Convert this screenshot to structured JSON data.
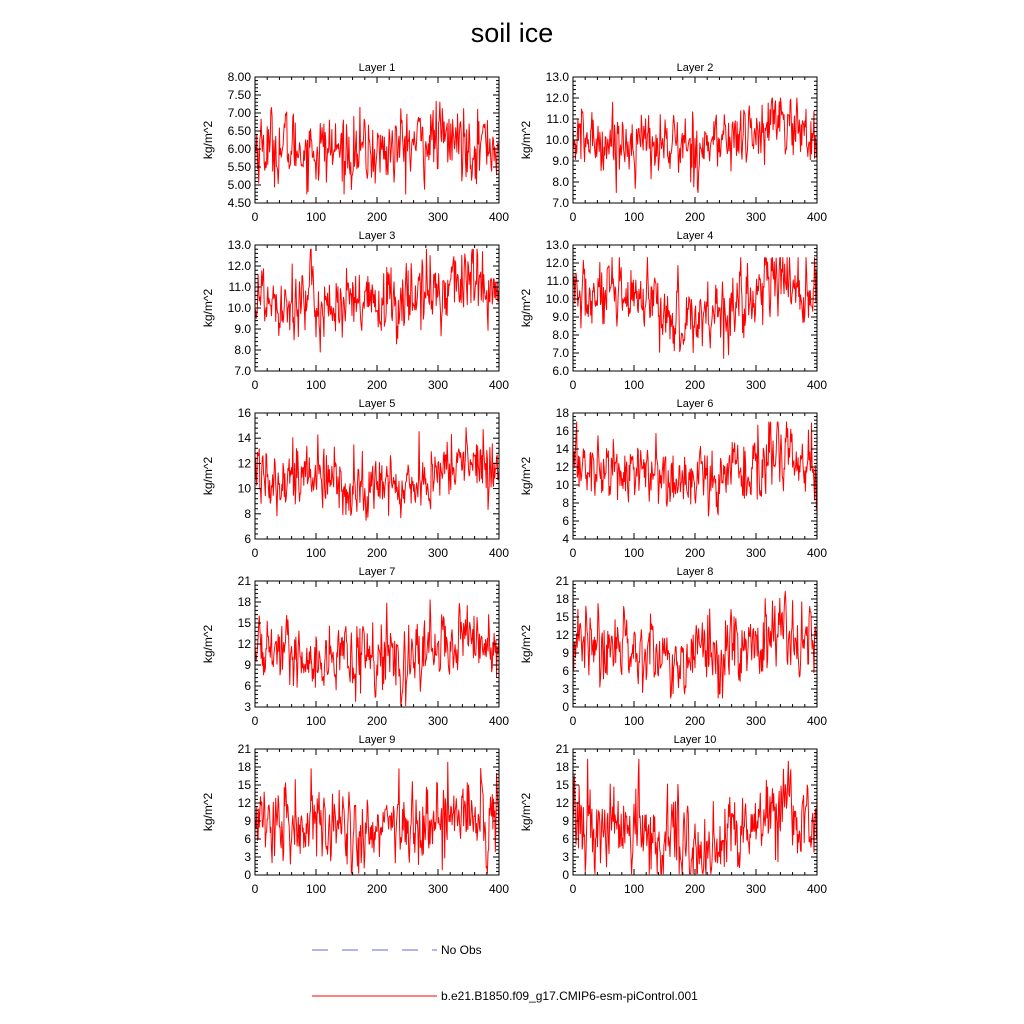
{
  "figure": {
    "title": "soil ice"
  },
  "legend": {
    "entries": [
      {
        "label": "No Obs",
        "color": "#6a6ad8",
        "style": "dashed"
      },
      {
        "label": "b.e21.B1850.f09_g17.CMIP6-esm-piControl.001",
        "color": "#ff0000",
        "style": "solid"
      }
    ]
  },
  "chart_data": [
    {
      "type": "line",
      "title": "Layer 1",
      "xlabel": "",
      "ylabel": "kg/m^2",
      "xlim": [
        0,
        400
      ],
      "ylim": [
        4.5,
        8.0
      ],
      "xticks": [
        0,
        100,
        200,
        300,
        400
      ],
      "yticks": [
        4.5,
        5.0,
        5.5,
        6.0,
        6.5,
        7.0,
        7.5,
        8.0
      ],
      "ytick_labels": [
        "4.50",
        "5.00",
        "5.50",
        "6.00",
        "6.50",
        "7.00",
        "7.50",
        "8.00"
      ],
      "series": [
        {
          "name": "b.e21.B1850.f09_g17.CMIP6-esm-piControl.001",
          "color": "#ff0000",
          "mean": 6.1,
          "sd": 0.5,
          "min": 4.75,
          "max": 7.55,
          "trend": [
            [
              0,
              6.1
            ],
            [
              100,
              6.0
            ],
            [
              200,
              5.9
            ],
            [
              300,
              6.3
            ],
            [
              400,
              6.1
            ]
          ]
        }
      ]
    },
    {
      "type": "line",
      "title": "Layer 2",
      "xlabel": "",
      "ylabel": "kg/m^2",
      "xlim": [
        0,
        400
      ],
      "ylim": [
        7.0,
        13.0
      ],
      "xticks": [
        0,
        100,
        200,
        300,
        400
      ],
      "yticks": [
        7.0,
        8.0,
        9.0,
        10.0,
        11.0,
        12.0,
        13.0
      ],
      "ytick_labels": [
        "7.0",
        "8.0",
        "9.0",
        "10.0",
        "11.0",
        "12.0",
        "13.0"
      ],
      "series": [
        {
          "name": "b.e21.B1850.f09_g17.CMIP6-esm-piControl.001",
          "color": "#ff0000",
          "mean": 10.0,
          "sd": 0.75,
          "min": 7.5,
          "max": 12.0,
          "trend": [
            [
              0,
              10.0
            ],
            [
              100,
              9.9
            ],
            [
              200,
              9.7
            ],
            [
              300,
              10.3
            ],
            [
              330,
              11.0
            ],
            [
              400,
              10.1
            ]
          ]
        }
      ]
    },
    {
      "type": "line",
      "title": "Layer 3",
      "xlabel": "",
      "ylabel": "kg/m^2",
      "xlim": [
        0,
        400
      ],
      "ylim": [
        7.0,
        13.0
      ],
      "xticks": [
        0,
        100,
        200,
        300,
        400
      ],
      "yticks": [
        7.0,
        8.0,
        9.0,
        10.0,
        11.0,
        12.0,
        13.0
      ],
      "ytick_labels": [
        "7.0",
        "8.0",
        "9.0",
        "10.0",
        "11.0",
        "12.0",
        "13.0"
      ],
      "series": [
        {
          "name": "b.e21.B1850.f09_g17.CMIP6-esm-piControl.001",
          "color": "#ff0000",
          "mean": 10.4,
          "sd": 0.9,
          "min": 7.6,
          "max": 12.8,
          "trend": [
            [
              0,
              10.6
            ],
            [
              100,
              10.3
            ],
            [
              170,
              9.9
            ],
            [
              300,
              10.8
            ],
            [
              340,
              11.5
            ],
            [
              400,
              10.6
            ]
          ]
        }
      ]
    },
    {
      "type": "line",
      "title": "Layer 4",
      "xlabel": "",
      "ylabel": "kg/m^2",
      "xlim": [
        0,
        400
      ],
      "ylim": [
        6.0,
        13.0
      ],
      "xticks": [
        0,
        100,
        200,
        300,
        400
      ],
      "yticks": [
        6.0,
        7.0,
        8.0,
        9.0,
        10.0,
        11.0,
        12.0,
        13.0
      ],
      "ytick_labels": [
        "6.0",
        "7.0",
        "8.0",
        "9.0",
        "10.0",
        "11.0",
        "12.0",
        "13.0"
      ],
      "series": [
        {
          "name": "b.e21.B1850.f09_g17.CMIP6-esm-piControl.001",
          "color": "#ff0000",
          "mean": 9.9,
          "sd": 1.0,
          "min": 6.7,
          "max": 12.3,
          "trend": [
            [
              0,
              10.2
            ],
            [
              100,
              9.8
            ],
            [
              185,
              8.8
            ],
            [
              300,
              10.2
            ],
            [
              340,
              11.3
            ],
            [
              400,
              10.0
            ]
          ]
        }
      ]
    },
    {
      "type": "line",
      "title": "Layer 5",
      "xlabel": "",
      "ylabel": "kg/m^2",
      "xlim": [
        0,
        400
      ],
      "ylim": [
        6,
        16
      ],
      "xticks": [
        0,
        100,
        200,
        300,
        400
      ],
      "yticks": [
        6,
        8,
        10,
        12,
        14,
        16
      ],
      "ytick_labels": [
        "6",
        "8",
        "10",
        "12",
        "14",
        "16"
      ],
      "series": [
        {
          "name": "b.e21.B1850.f09_g17.CMIP6-esm-piControl.001",
          "color": "#ff0000",
          "mean": 11.0,
          "sd": 1.3,
          "min": 6.8,
          "max": 15.0,
          "trend": [
            [
              0,
              11.5
            ],
            [
              100,
              10.8
            ],
            [
              185,
              9.8
            ],
            [
              300,
              10.8
            ],
            [
              340,
              12.5
            ],
            [
              400,
              11.2
            ]
          ]
        }
      ]
    },
    {
      "type": "line",
      "title": "Layer 6",
      "xlabel": "",
      "ylabel": "kg/m^2",
      "xlim": [
        0,
        400
      ],
      "ylim": [
        4,
        18
      ],
      "xticks": [
        0,
        100,
        200,
        300,
        400
      ],
      "yticks": [
        4,
        6,
        8,
        10,
        12,
        14,
        16,
        18
      ],
      "ytick_labels": [
        "4",
        "6",
        "8",
        "10",
        "12",
        "14",
        "16",
        "18"
      ],
      "series": [
        {
          "name": "b.e21.B1850.f09_g17.CMIP6-esm-piControl.001",
          "color": "#ff0000",
          "mean": 11.8,
          "sd": 1.8,
          "min": 5.4,
          "max": 17.0,
          "trend": [
            [
              0,
              12.2
            ],
            [
              100,
              11.5
            ],
            [
              190,
              10.0
            ],
            [
              300,
              11.5
            ],
            [
              340,
              14.0
            ],
            [
              400,
              12.0
            ]
          ]
        }
      ]
    },
    {
      "type": "line",
      "title": "Layer 7",
      "xlabel": "",
      "ylabel": "kg/m^2",
      "xlim": [
        0,
        400
      ],
      "ylim": [
        3,
        21
      ],
      "xticks": [
        0,
        100,
        200,
        300,
        400
      ],
      "yticks": [
        3,
        6,
        9,
        12,
        15,
        18,
        21
      ],
      "ytick_labels": [
        "3",
        "6",
        "9",
        "12",
        "15",
        "18",
        "21"
      ],
      "series": [
        {
          "name": "b.e21.B1850.f09_g17.CMIP6-esm-piControl.001",
          "color": "#ff0000",
          "mean": 11.0,
          "sd": 2.3,
          "min": 3.2,
          "max": 18.3,
          "trend": [
            [
              0,
              11.5
            ],
            [
              100,
              10.5
            ],
            [
              190,
              9.0
            ],
            [
              300,
              11.0
            ],
            [
              340,
              13.5
            ],
            [
              400,
              11.0
            ]
          ]
        }
      ]
    },
    {
      "type": "line",
      "title": "Layer 8",
      "xlabel": "",
      "ylabel": "kg/m^2",
      "xlim": [
        0,
        400
      ],
      "ylim": [
        0,
        21
      ],
      "xticks": [
        0,
        100,
        200,
        300,
        400
      ],
      "yticks": [
        0,
        3,
        6,
        9,
        12,
        15,
        18,
        21
      ],
      "ytick_labels": [
        "0",
        "3",
        "6",
        "9",
        "12",
        "15",
        "18",
        "21"
      ],
      "series": [
        {
          "name": "b.e21.B1850.f09_g17.CMIP6-esm-piControl.001",
          "color": "#ff0000",
          "mean": 10.2,
          "sd": 3.0,
          "min": 1.5,
          "max": 19.3,
          "trend": [
            [
              0,
              11.0
            ],
            [
              100,
              9.8
            ],
            [
              190,
              8.0
            ],
            [
              300,
              10.5
            ],
            [
              340,
              13.0
            ],
            [
              400,
              10.5
            ]
          ]
        }
      ]
    },
    {
      "type": "line",
      "title": "Layer 9",
      "xlabel": "",
      "ylabel": "kg/m^2",
      "xlim": [
        0,
        400
      ],
      "ylim": [
        0,
        21
      ],
      "xticks": [
        0,
        100,
        200,
        300,
        400
      ],
      "yticks": [
        0,
        3,
        6,
        9,
        12,
        15,
        18,
        21
      ],
      "ytick_labels": [
        "0",
        "3",
        "6",
        "9",
        "12",
        "15",
        "18",
        "21"
      ],
      "series": [
        {
          "name": "b.e21.B1850.f09_g17.CMIP6-esm-piControl.001",
          "color": "#ff0000",
          "mean": 8.5,
          "sd": 3.3,
          "min": 0.3,
          "max": 18.8,
          "trend": [
            [
              0,
              9.5
            ],
            [
              100,
              8.0
            ],
            [
              200,
              6.5
            ],
            [
              300,
              9.0
            ],
            [
              340,
              11.5
            ],
            [
              400,
              8.5
            ]
          ]
        }
      ]
    },
    {
      "type": "line",
      "title": "Layer 10",
      "xlabel": "",
      "ylabel": "kg/m^2",
      "xlim": [
        0,
        400
      ],
      "ylim": [
        0,
        21
      ],
      "xticks": [
        0,
        100,
        200,
        300,
        400
      ],
      "yticks": [
        0,
        3,
        6,
        9,
        12,
        15,
        18,
        21
      ],
      "ytick_labels": [
        "0",
        "3",
        "6",
        "9",
        "12",
        "15",
        "18",
        "21"
      ],
      "series": [
        {
          "name": "b.e21.B1850.f09_g17.CMIP6-esm-piControl.001",
          "color": "#ff0000",
          "mean": 7.5,
          "sd": 3.5,
          "min": 0.2,
          "max": 19.3,
          "trend": [
            [
              0,
              8.5
            ],
            [
              100,
              7.5
            ],
            [
              200,
              4.5
            ],
            [
              300,
              8.0
            ],
            [
              340,
              11.5
            ],
            [
              400,
              7.5
            ]
          ]
        }
      ]
    }
  ]
}
